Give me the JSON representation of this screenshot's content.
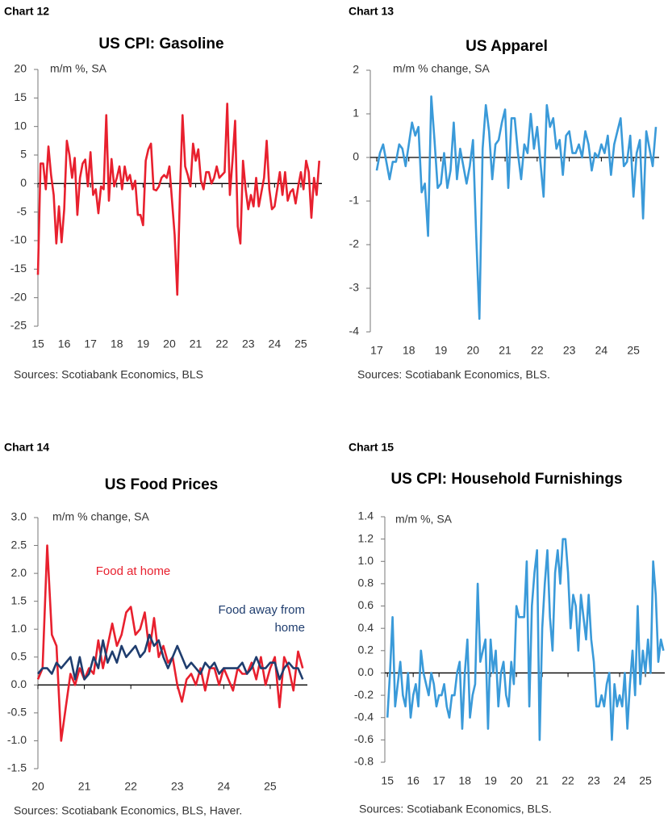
{
  "chart_data": [
    {
      "type": "line",
      "label": "Chart 12",
      "title": "US CPI: Gasoline",
      "subtitle": "m/m %, SA",
      "source": "Sources: Scotiabank Economics, BLS",
      "x": [
        15,
        15.1,
        15.2,
        15.3,
        15.4,
        15.5,
        15.6,
        15.7,
        15.8,
        15.9,
        16,
        16.1,
        16.2,
        16.3,
        16.4,
        16.5,
        16.6,
        16.7,
        16.8,
        16.9,
        17,
        17.1,
        17.2,
        17.3,
        17.4,
        17.5,
        17.6,
        17.7,
        17.8,
        17.9,
        18,
        18.1,
        18.2,
        18.3,
        18.4,
        18.5,
        18.6,
        18.7,
        18.8,
        18.9,
        19,
        19.1,
        19.2,
        19.3,
        19.4,
        19.5,
        19.6,
        19.7,
        19.8,
        19.9,
        20,
        20.1,
        20.2,
        20.3,
        20.4,
        20.5,
        20.6,
        20.7,
        20.8,
        20.9,
        21,
        21.1,
        21.2,
        21.3,
        21.4,
        21.5,
        21.6,
        21.7,
        21.8,
        21.9,
        22,
        22.1,
        22.2,
        22.3,
        22.4,
        22.5,
        22.6,
        22.7,
        22.8,
        22.9,
        23,
        23.1,
        23.2,
        23.3,
        23.4,
        23.5,
        23.6,
        23.7,
        23.8,
        23.9,
        24,
        24.1,
        24.2,
        24.3,
        24.4,
        24.5,
        24.6,
        24.7,
        24.8,
        24.9,
        25,
        25.1,
        25.2,
        25.3,
        25.4,
        25.5,
        25.6,
        25.7
      ],
      "series": [
        {
          "color": "#e8202e",
          "values": [
            -16,
            3.5,
            3.5,
            -1,
            6.5,
            1.5,
            -2,
            -10.5,
            -4,
            -10.3,
            -4.5,
            7.5,
            5,
            1,
            4.5,
            -5.5,
            1,
            3.5,
            4.2,
            -0.5,
            5.5,
            -2,
            -1,
            -5.2,
            -0.5,
            -1,
            12,
            -3,
            4.3,
            -0.5,
            1,
            3,
            -1,
            3,
            0.5,
            1.5,
            -1,
            0.5,
            -5.5,
            -5.5,
            -7.3,
            4,
            6,
            7,
            -1,
            -1.2,
            -0.5,
            1,
            1.5,
            1,
            3,
            -3,
            -9,
            -19.5,
            -2,
            12,
            3,
            1.5,
            -0.5,
            7,
            4,
            6,
            0.5,
            -1,
            2,
            2,
            0,
            1,
            3,
            1,
            1.5,
            2,
            14,
            -2,
            4,
            11,
            -7.5,
            -10.5,
            4,
            -1,
            -4.5,
            -2,
            -4,
            1,
            -4,
            -1.5,
            1,
            7.5,
            -1,
            -4.5,
            -4,
            -1,
            2,
            -2,
            2,
            -3,
            -1.5,
            -1,
            -3.5,
            -0.5,
            2,
            -1,
            4,
            2,
            -6,
            1,
            -2,
            4
          ]
        }
      ],
      "xlim": [
        15,
        25.8
      ],
      "xticks": [
        15,
        16,
        17,
        18,
        19,
        20,
        21,
        22,
        23,
        24,
        25
      ],
      "ylim": [
        -25,
        20
      ],
      "yticks": [
        -25,
        -20,
        -15,
        -10,
        -5,
        0,
        5,
        10,
        15,
        20
      ]
    },
    {
      "type": "line",
      "label": "Chart 13",
      "title": "US Apparel",
      "subtitle": "m/m % change, SA",
      "source": "Sources: Scotiabank Economics, BLS.",
      "x": [
        17,
        17.1,
        17.2,
        17.3,
        17.4,
        17.5,
        17.6,
        17.7,
        17.8,
        17.9,
        18,
        18.1,
        18.2,
        18.3,
        18.4,
        18.5,
        18.6,
        18.7,
        18.8,
        18.9,
        19,
        19.1,
        19.2,
        19.3,
        19.4,
        19.5,
        19.6,
        19.7,
        19.8,
        19.9,
        20,
        20.1,
        20.2,
        20.3,
        20.4,
        20.5,
        20.6,
        20.7,
        20.8,
        20.9,
        21,
        21.1,
        21.2,
        21.3,
        21.4,
        21.5,
        21.6,
        21.7,
        21.8,
        21.9,
        22,
        22.1,
        22.2,
        22.3,
        22.4,
        22.5,
        22.6,
        22.7,
        22.8,
        22.9,
        23,
        23.1,
        23.2,
        23.3,
        23.4,
        23.5,
        23.6,
        23.7,
        23.8,
        23.9,
        24,
        24.1,
        24.2,
        24.3,
        24.4,
        24.5,
        24.6,
        24.7,
        24.8,
        24.9,
        25,
        25.1,
        25.2,
        25.3,
        25.4,
        25.5,
        25.6,
        25.7
      ],
      "series": [
        {
          "color": "#3a9ad9",
          "values": [
            -0.3,
            0.1,
            0.3,
            -0.1,
            -0.5,
            -0.1,
            -0.1,
            0.3,
            0.2,
            -0.2,
            0.3,
            0.8,
            0.5,
            0.7,
            -0.8,
            -0.6,
            -1.8,
            1.4,
            0.4,
            -0.7,
            -0.6,
            0.1,
            -0.7,
            -0.3,
            0.8,
            -0.5,
            0.2,
            -0.2,
            -0.6,
            -0.2,
            0.4,
            -1.8,
            -3.7,
            0.2,
            1.2,
            0.6,
            -0.5,
            0.3,
            0.4,
            0.8,
            1.1,
            -0.7,
            0.9,
            0.9,
            0.1,
            -0.5,
            0.3,
            0.1,
            1,
            0.2,
            0.7,
            -0.1,
            -0.9,
            1.2,
            0.7,
            0.9,
            0.2,
            0.4,
            -0.4,
            0.5,
            0.6,
            0.1,
            0.1,
            0.3,
            0,
            0.6,
            0.3,
            -0.3,
            0.1,
            0,
            0.3,
            0.1,
            0.5,
            -0.4,
            0.3,
            0.6,
            0.9,
            -0.2,
            -0.1,
            0.5,
            -0.9,
            0.1,
            0.4,
            -1.4,
            0.6,
            0.2,
            -0.2,
            0.7
          ]
        }
      ],
      "xlim": [
        16.8,
        25.8
      ],
      "xticks": [
        17,
        18,
        19,
        20,
        21,
        22,
        23,
        24,
        25
      ],
      "ylim": [
        -4,
        2
      ],
      "yticks": [
        -4,
        -3,
        -2,
        -1,
        0,
        1,
        2
      ]
    },
    {
      "type": "line",
      "label": "Chart 14",
      "title": "US Food Prices",
      "subtitle": "m/m % change, SA",
      "source": "Sources: Scotiabank Economics, BLS, Haver.",
      "legend": "inline",
      "x": [
        20,
        20.1,
        20.2,
        20.3,
        20.4,
        20.5,
        20.6,
        20.7,
        20.8,
        20.9,
        21,
        21.1,
        21.2,
        21.3,
        21.4,
        21.5,
        21.6,
        21.7,
        21.8,
        21.9,
        22,
        22.1,
        22.2,
        22.3,
        22.4,
        22.5,
        22.6,
        22.7,
        22.8,
        22.9,
        23,
        23.1,
        23.2,
        23.3,
        23.4,
        23.5,
        23.6,
        23.7,
        23.8,
        23.9,
        24,
        24.1,
        24.2,
        24.3,
        24.4,
        24.5,
        24.6,
        24.7,
        24.8,
        24.9,
        25,
        25.1,
        25.2,
        25.3,
        25.4,
        25.5,
        25.6,
        25.7
      ],
      "series": [
        {
          "name": "Food at home",
          "color": "#e8202e",
          "values": [
            0.1,
            0.3,
            2.5,
            0.9,
            0.7,
            -1,
            -0.4,
            0.2,
            0,
            0.3,
            0.1,
            0.3,
            0.2,
            0.8,
            0.3,
            0.7,
            1.1,
            0.7,
            0.9,
            1.3,
            1.4,
            0.9,
            1,
            1.3,
            0.6,
            1.2,
            0.5,
            0.7,
            0.4,
            0.5,
            0,
            -0.3,
            0.1,
            0.2,
            0,
            0.3,
            -0.1,
            0.3,
            0.3,
            0,
            0.3,
            0.1,
            -0.1,
            0.3,
            0.2,
            0.2,
            0.4,
            0.1,
            0.5,
            0,
            0.3,
            0.5,
            -0.4,
            0.5,
            0.3,
            -0.1,
            0.6,
            0.3
          ]
        },
        {
          "name": "Food away from home",
          "color": "#1f3d6e",
          "values": [
            0.2,
            0.3,
            0.3,
            0.2,
            0.4,
            0.3,
            0.4,
            0.5,
            0.1,
            0.5,
            0.1,
            0.2,
            0.5,
            0.3,
            0.8,
            0.4,
            0.6,
            0.4,
            0.7,
            0.5,
            0.6,
            0.7,
            0.5,
            0.6,
            0.9,
            0.7,
            0.8,
            0.5,
            0.3,
            0.5,
            0.7,
            0.5,
            0.3,
            0.4,
            0.3,
            0.2,
            0.4,
            0.3,
            0.4,
            0.2,
            0.3,
            0.3,
            0.3,
            0.3,
            0.4,
            0.2,
            0.3,
            0.5,
            0.3,
            0.3,
            0.4,
            0.4,
            0.1,
            0.3,
            0.4,
            0.3,
            0.3,
            0.1
          ]
        }
      ],
      "xlim": [
        20,
        25.8
      ],
      "xticks": [
        20,
        21,
        22,
        23,
        24,
        25
      ],
      "ylim": [
        -1.5,
        3
      ],
      "yticks": [
        -1.5,
        {
          "value": -1,
          "label": "-1.0"
        },
        -0.5,
        {
          "value": 0,
          "label": "0.0"
        },
        0.5,
        {
          "value": 1,
          "label": "1.0"
        },
        1.5,
        {
          "value": 2,
          "label": "2.0"
        },
        2.5,
        {
          "value": 3,
          "label": "3.0"
        }
      ]
    },
    {
      "type": "line",
      "label": "Chart 15",
      "title": "US CPI: Household Furnishings",
      "subtitle": "m/m %, SA",
      "source": "Sources: Scotiabank Economics, BLS.",
      "x": [
        15,
        15.1,
        15.2,
        15.3,
        15.4,
        15.5,
        15.6,
        15.7,
        15.8,
        15.9,
        16,
        16.1,
        16.2,
        16.3,
        16.4,
        16.5,
        16.6,
        16.7,
        16.8,
        16.9,
        17,
        17.1,
        17.2,
        17.3,
        17.4,
        17.5,
        17.6,
        17.7,
        17.8,
        17.9,
        18,
        18.1,
        18.2,
        18.3,
        18.4,
        18.5,
        18.6,
        18.7,
        18.8,
        18.9,
        19,
        19.1,
        19.2,
        19.3,
        19.4,
        19.5,
        19.6,
        19.7,
        19.8,
        19.9,
        20,
        20.1,
        20.2,
        20.3,
        20.4,
        20.5,
        20.6,
        20.7,
        20.8,
        20.9,
        21,
        21.1,
        21.2,
        21.3,
        21.4,
        21.5,
        21.6,
        21.7,
        21.8,
        21.9,
        22,
        22.1,
        22.2,
        22.3,
        22.4,
        22.5,
        22.6,
        22.7,
        22.8,
        22.9,
        23,
        23.1,
        23.2,
        23.3,
        23.4,
        23.5,
        23.6,
        23.7,
        23.8,
        23.9,
        24,
        24.1,
        24.2,
        24.3,
        24.4,
        24.5,
        24.6,
        24.7,
        24.8,
        24.9,
        25,
        25.1,
        25.2,
        25.3,
        25.4,
        25.5,
        25.6,
        25.7
      ],
      "series": [
        {
          "color": "#3a9ad9",
          "values": [
            -0.4,
            0,
            0.5,
            -0.3,
            -0.1,
            0.1,
            -0.2,
            -0.3,
            0,
            -0.4,
            -0.2,
            -0.1,
            -0.3,
            0.2,
            0,
            -0.1,
            -0.2,
            0,
            -0.1,
            -0.3,
            -0.2,
            -0.2,
            -0.1,
            -0.3,
            -0.4,
            -0.2,
            -0.2,
            0,
            0.1,
            -0.5,
            0,
            0.3,
            -0.4,
            -0.2,
            -0.1,
            0.8,
            0.1,
            0.2,
            0.3,
            -0.5,
            0.3,
            0,
            0.2,
            -0.3,
            0,
            0.1,
            -0.2,
            -0.3,
            0.1,
            -0.1,
            0.6,
            0.5,
            0.5,
            0.5,
            1,
            -0.3,
            0.6,
            0.9,
            1.1,
            -0.6,
            0.4,
            0.8,
            1.1,
            0.5,
            0.2,
            0.9,
            1.1,
            0.8,
            1.2,
            1.2,
            0.9,
            0.4,
            0.7,
            0.6,
            0.2,
            0.7,
            0.5,
            0.3,
            0.7,
            0.3,
            0.1,
            -0.3,
            -0.3,
            -0.2,
            -0.3,
            -0.1,
            0,
            -0.6,
            -0.1,
            -0.3,
            -0.2,
            -0.3,
            0,
            -0.5,
            -0.1,
            0.2,
            -0.2,
            0.6,
            -0.1,
            0.2,
            0,
            0.3,
            0,
            1,
            0.7,
            0.1,
            0.3,
            0.2
          ]
        }
      ],
      "xlim": [
        14.9,
        25.75
      ],
      "xticks": [
        15,
        16,
        17,
        18,
        19,
        20,
        21,
        22,
        23,
        24,
        25
      ],
      "ylim": [
        -0.8,
        1.4
      ],
      "yticks": [
        -0.8,
        -0.6,
        -0.4,
        -0.2,
        {
          "value": 0,
          "label": "0.0"
        },
        0.2,
        0.4,
        0.6,
        0.8,
        {
          "value": 1,
          "label": "1.0"
        },
        1.2,
        1.4
      ]
    }
  ]
}
